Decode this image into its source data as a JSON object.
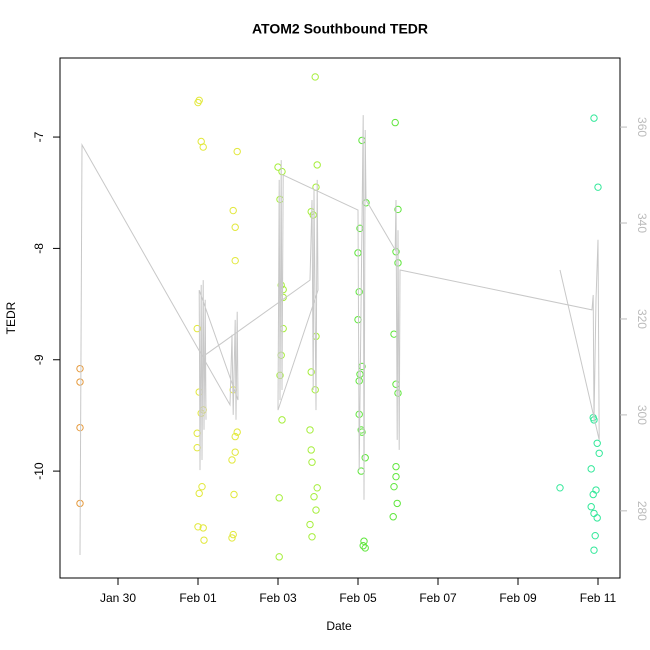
{
  "chart_data": {
    "type": "scatter",
    "title": "ATOM2 Southbound TEDR",
    "xlabel": "Date",
    "ylabel": "TEDR",
    "xlim": [
      28.55,
      42.55
    ],
    "xticks": [
      {
        "value": 30,
        "label": "Jan 30"
      },
      {
        "value": 32,
        "label": "Feb 01"
      },
      {
        "value": 34,
        "label": "Feb 03"
      },
      {
        "value": 36,
        "label": "Feb 05"
      },
      {
        "value": 38,
        "label": "Feb 07"
      },
      {
        "value": 40,
        "label": "Feb 09"
      },
      {
        "value": 42,
        "label": "Feb 11"
      }
    ],
    "ylim": [
      -10.96,
      -6.29
    ],
    "yticks": [
      -10,
      -9,
      -8,
      -7
    ],
    "y2lim": [
      266.0,
      374.4
    ],
    "y2ticks": [
      280,
      300,
      320,
      340,
      360
    ],
    "y2_tick_color": "#bbbbbb",
    "grid": false,
    "series": [
      {
        "color": "#e69a3c",
        "x": [
          29.05,
          29.05,
          29.05,
          29.05
        ],
        "values": [
          -9.08,
          -9.2,
          -9.61,
          -10.29
        ]
      },
      {
        "color": "#e2e83c",
        "x": [
          32.03,
          32.0,
          32.08,
          32.13,
          31.98,
          32.03,
          32.13,
          32.08,
          31.98,
          31.98,
          32.1,
          32.03,
          32.0,
          32.13,
          32.15,
          32.98,
          32.88,
          32.93,
          32.93,
          32.88,
          32.98,
          32.93,
          32.93,
          32.85,
          32.9,
          32.88,
          32.85
        ],
        "values": [
          -6.67,
          -6.69,
          -7.04,
          -7.09,
          -8.72,
          -9.29,
          -9.45,
          -9.48,
          -9.66,
          -9.79,
          -10.14,
          -10.2,
          -10.5,
          -10.51,
          -10.62,
          -7.13,
          -7.66,
          -7.81,
          -8.11,
          -9.27,
          -9.65,
          -9.69,
          -9.83,
          -9.9,
          -10.21,
          -10.57,
          -10.6
        ]
      },
      {
        "color": "#a6ee3c",
        "x": [
          34.0,
          34.1,
          34.05,
          34.08,
          34.13,
          34.13,
          34.13,
          34.08,
          34.05,
          34.1,
          34.03,
          34.03,
          34.93,
          34.98,
          34.95,
          34.83,
          34.88,
          34.95,
          34.83,
          34.93,
          34.8,
          34.83,
          34.85,
          34.98,
          34.9,
          34.95,
          34.8,
          34.85
        ],
        "values": [
          -7.27,
          -7.31,
          -7.56,
          -8.33,
          -8.37,
          -8.44,
          -8.72,
          -8.96,
          -9.14,
          -9.54,
          -10.24,
          -10.77,
          -6.46,
          -7.25,
          -7.45,
          -7.67,
          -7.7,
          -8.79,
          -9.11,
          -9.27,
          -9.63,
          -9.81,
          -9.92,
          -10.15,
          -10.23,
          -10.35,
          -10.48,
          -10.59
        ]
      },
      {
        "color": "#5fe63c",
        "x": [
          36.1,
          36.2,
          36.05,
          36.0,
          36.03,
          36.0,
          36.1,
          36.05,
          36.03,
          36.03,
          36.08,
          36.1,
          36.18,
          36.08,
          36.15,
          36.13,
          36.18,
          36.93,
          37.0,
          36.95,
          37.0,
          36.9,
          36.95,
          37.0,
          36.95,
          36.95,
          36.9,
          36.98,
          36.88
        ],
        "values": [
          -7.03,
          -7.59,
          -7.82,
          -8.04,
          -8.39,
          -8.64,
          -9.06,
          -9.13,
          -9.19,
          -9.49,
          -9.63,
          -9.65,
          -9.88,
          -10.0,
          -10.63,
          -10.67,
          -10.69,
          -6.87,
          -7.65,
          -8.03,
          -8.13,
          -8.77,
          -9.22,
          -9.3,
          -9.96,
          -10.05,
          -10.14,
          -10.29,
          -10.41
        ]
      },
      {
        "color": "#33e89a",
        "x": [
          41.05,
          41.9,
          42.0,
          41.88,
          41.9,
          41.98,
          42.03,
          41.83,
          41.95,
          41.88,
          41.83,
          41.9,
          41.98,
          41.93,
          41.9
        ],
        "values": [
          -10.15,
          -6.83,
          -7.45,
          -9.52,
          -9.54,
          -9.75,
          -9.84,
          -9.98,
          -10.17,
          -10.21,
          -10.32,
          -10.38,
          -10.42,
          -10.58,
          -10.71
        ]
      },
      {
        "type": "line",
        "axis": "y2",
        "color": "#c8c8c8",
        "x": [
          29.05,
          29.1,
          32.8,
          32.85,
          32.88,
          32.93,
          32.95,
          32.98,
          33.0,
          32.03,
          32.05,
          32.08,
          32.1,
          32.13,
          32.15,
          32.18,
          32.2,
          32.18,
          34.8,
          34.85,
          34.88,
          34.9,
          34.95,
          34.98,
          35.0,
          34.0,
          34.03,
          34.05,
          34.08,
          34.1,
          34.13,
          36.0,
          36.03,
          36.13,
          36.15,
          36.18,
          36.2,
          36.93,
          36.95,
          36.98,
          37.0,
          37.03,
          37.05,
          41.85,
          41.88,
          41.9,
          41.95,
          42.0,
          42.03,
          41.05
        ],
        "values": [
          270.8,
          356.3,
          302.1,
          316.7,
          300.0,
          319.8,
          299.0,
          321.5,
          303.1,
          326.0,
          288.5,
          327.1,
          290.6,
          328.1,
          296.9,
          324.0,
          299.0,
          312.5,
          328.1,
          344.8,
          305.2,
          346.9,
          301.0,
          349.0,
          326.0,
          301.0,
          349.0,
          303.1,
          353.1,
          305.2,
          350.0,
          342.7,
          288.5,
          362.5,
          282.3,
          359.4,
          344.8,
          334.4,
          344.8,
          294.8,
          338.5,
          292.7,
          330.2,
          321.9,
          325.0,
          299.0,
          324.0,
          336.5,
          294.8,
          330.2
        ]
      }
    ]
  }
}
